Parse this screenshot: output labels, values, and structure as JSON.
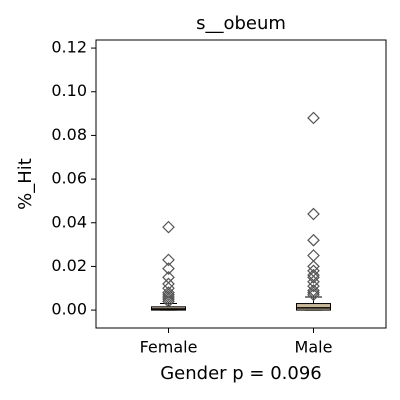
{
  "chart_data": {
    "type": "box",
    "title": "s__obeum",
    "ylabel": "%_Hit",
    "xlabel": "Gender p = 0.096",
    "categories": [
      "Female",
      "Male"
    ],
    "color": "#c8b89a",
    "boxes": [
      {
        "min": 0,
        "q1": 0,
        "median": 0.0005,
        "q3": 0.0015,
        "max": 0.003,
        "outliers": [
          0.038,
          0.023,
          0.019,
          0.015,
          0.012,
          0.01,
          0.008,
          0.007,
          0.006,
          0.005,
          0.004
        ]
      },
      {
        "min": 0,
        "q1": 0,
        "median": 0.001,
        "q3": 0.003,
        "max": 0.006,
        "outliers": [
          0.088,
          0.044,
          0.032,
          0.025,
          0.02,
          0.018,
          0.016,
          0.015,
          0.013,
          0.011,
          0.009,
          0.008,
          0.007
        ]
      }
    ],
    "ylim": [
      -0.0082,
      0.1237
    ],
    "yticks": [
      {
        "value": 0,
        "label": "0.00"
      },
      {
        "value": 0.02,
        "label": "0.02"
      },
      {
        "value": 0.04,
        "label": "0.04"
      },
      {
        "value": 0.06,
        "label": "0.06"
      },
      {
        "value": 0.08,
        "label": "0.08"
      },
      {
        "value": 0.1,
        "label": "0.10"
      },
      {
        "value": 0.12,
        "label": "0.12"
      }
    ]
  }
}
